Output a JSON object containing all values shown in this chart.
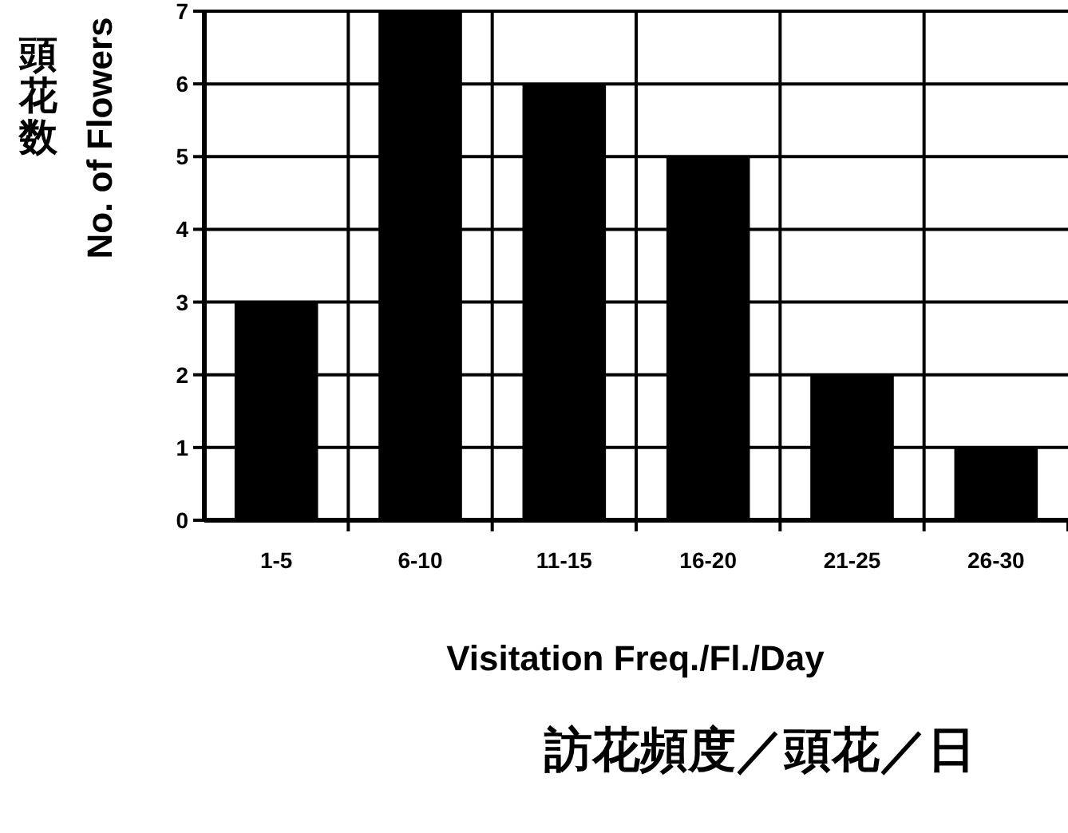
{
  "chart_data": {
    "type": "bar",
    "categories": [
      "1-5",
      "6-10",
      "11-15",
      "16-20",
      "21-25",
      "26-30"
    ],
    "values": [
      3,
      7,
      6,
      5,
      2,
      1
    ],
    "color": "#000000",
    "ylim": [
      0,
      7
    ],
    "yticks": [
      0,
      1,
      2,
      3,
      4,
      5,
      6,
      7
    ],
    "grid": true,
    "xlabel": "Visitation Freq./Fl./Day",
    "ylabel": "No. of Flowers",
    "annotations": [
      "訪花頻度／頭花／日",
      "頭花数"
    ]
  }
}
